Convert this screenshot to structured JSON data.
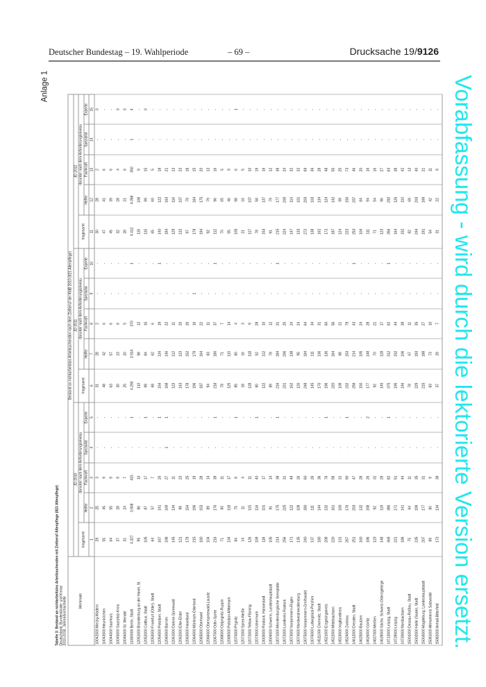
{
  "page_header": {
    "left": "Deutscher Bundestag – 19. Wahlperiode",
    "center": "– 69 –",
    "right_prefix": "Drucksache 19/",
    "right_number": "9126"
  },
  "annex_label": "Anlage 1",
  "watermark": "Vorabfassung - wird durch die lektorierte Version ersetzt.",
  "watermark_color": "#22e6ee",
  "table": {
    "title": "Tabelle 3: Bestand an nichtarbeitslos Arbeitsuchenden mit Zielberuf Altenpflege (821 Altenpflege)",
    "subtitle": "Deutschland, Bundesländer und Kreise",
    "period": "2010-2018, Jahresdurchschnitte",
    "header": {
      "merkmale": "Merkmale",
      "top": "Bestand an nichtarbeitslos Arbeitsuchenden nach dem Zielberuf der KldB 2010 (821 Altenpflege)",
      "years": [
        "JD 2010",
        "JD 2011",
        "JD 2012"
      ],
      "insgesamt": "Insgesamt",
      "darunter": "darunter nach dem Anforderungsniveau",
      "levels": [
        "Helfer",
        "Fachkraft",
        "Spezialist",
        "Experte"
      ],
      "col_numbers": [
        "1",
        "2",
        "3",
        "4",
        "5",
        "6",
        "7",
        "8",
        "9",
        "10",
        "11",
        "12",
        "13",
        "14",
        "15"
      ]
    },
    "rows": [
      {
        "name": "10042000 Merzig-Wadern",
        "v": [
          "29",
          "25",
          "3",
          "-",
          "-",
          "31",
          "28",
          "2",
          "-",
          "-",
          "30",
          "28",
          "2",
          "-",
          "0"
        ]
      },
      {
        "name": "10043000 Neunkirchen",
        "v": [
          "55",
          "45",
          "9",
          "-",
          "-",
          "48",
          "42",
          "6",
          "-",
          "-",
          "47",
          "41",
          "6",
          "-",
          "-"
        ]
      },
      {
        "name": "10044000 Saarlouis",
        "v": [
          "64",
          "55",
          "9",
          "-",
          "-",
          "63",
          "57",
          "6",
          "-",
          "-",
          "45",
          "39",
          "6",
          "-",
          "-"
        ]
      },
      {
        "name": "10045000 Saarpfalz-Kreis",
        "v": [
          "37",
          "28",
          "9",
          "-",
          "-",
          "30",
          "23",
          "6",
          "-",
          "-",
          "32",
          "28",
          "4",
          "-",
          "0"
        ]
      },
      {
        "name": "10046000 St. Wendel",
        "v": [
          "31",
          "24",
          "7",
          "-",
          "-",
          "25",
          "20",
          "5",
          "-",
          "-",
          "28",
          "21",
          "6",
          "-",
          "0"
        ]
      },
      {
        "name": "11000000 Berlin, Stadt",
        "v": [
          "4.327",
          "3.908",
          "415",
          "-",
          "1",
          "4.290",
          "3.914",
          "370",
          "-",
          "1",
          "4.412",
          "4.058",
          "350",
          "1",
          "4"
        ]
      },
      {
        "name": "12051000 Brandenburg an der Havel, St.",
        "v": [
          "95",
          "86",
          "10",
          "-",
          "-",
          "110",
          "98",
          "12",
          "-",
          "-",
          "115",
          "106",
          "9",
          "-",
          "-"
        ]
      },
      {
        "name": "12052000 Cottbus, Stadt",
        "v": [
          "105",
          "87",
          "17",
          "-",
          "1",
          "99",
          "84",
          "15",
          "-",
          "-",
          "115",
          "99",
          "15",
          "-",
          "0"
        ]
      },
      {
        "name": "12053000 Frankfurt (Oder), Stadt",
        "v": [
          "64",
          "57",
          "7",
          "-",
          "-",
          "68",
          "62",
          "6",
          "-",
          "-",
          "65",
          "60",
          "5",
          "-",
          "-"
        ]
      },
      {
        "name": "12054000 Potsdam, Stadt",
        "v": [
          "167",
          "141",
          "25",
          "-",
          "1",
          "154",
          "134",
          "19",
          "-",
          "1",
          "140",
          "122",
          "18",
          "-",
          "-"
        ]
      },
      {
        "name": "12060000 Barnim",
        "v": [
          "198",
          "169",
          "27",
          "1",
          "1",
          "168",
          "146",
          "22",
          "-",
          "-",
          "184",
          "163",
          "21",
          "-",
          "-"
        ]
      },
      {
        "name": "12061000 Dahme-Spreewald",
        "v": [
          "145",
          "134",
          "11",
          "-",
          "-",
          "123",
          "112",
          "11",
          "-",
          "-",
          "129",
          "116",
          "13",
          "-",
          "-"
        ]
      },
      {
        "name": "12062000 Elbe-Elster",
        "v": [
          "121",
          "98",
          "23",
          "-",
          "-",
          "143",
          "123",
          "20",
          "-",
          "-",
          "132",
          "107",
          "23",
          "-",
          "-"
        ]
      },
      {
        "name": "12063000 Havelland",
        "v": [
          "179",
          "154",
          "25",
          "-",
          "-",
          "178",
          "152",
          "26",
          "-",
          "-",
          "97",
          "79",
          "18",
          "-",
          "-"
        ]
      },
      {
        "name": "12064000 Märkisch-Oderland",
        "v": [
          "215",
          "196",
          "19",
          "-",
          "-",
          "196",
          "179",
          "16",
          "1",
          "-",
          "178",
          "164",
          "15",
          "-",
          "-"
        ]
      },
      {
        "name": "12065000 Oberhavel",
        "v": [
          "180",
          "153",
          "28",
          "-",
          "-",
          "187",
          "164",
          "22",
          "-",
          "-",
          "194",
          "175",
          "20",
          "-",
          "-"
        ]
      },
      {
        "name": "12066000 Oberspreewald-Lausitz",
        "v": [
          "104",
          "89",
          "14",
          "-",
          "-",
          "94",
          "83",
          "11",
          "-",
          "-",
          "92",
          "79",
          "13",
          "-",
          "-"
        ]
      },
      {
        "name": "12067000 Oder-Spree",
        "v": [
          "216",
          "176",
          "39",
          "-",
          "1",
          "218",
          "180",
          "37",
          "-",
          "1",
          "112",
          "96",
          "16",
          "-",
          "-"
        ]
      },
      {
        "name": "12068000 Ostprignitz-Ruppin",
        "v": [
          "71",
          "60",
          "11",
          "-",
          "-",
          "78",
          "71",
          "7",
          "-",
          "-",
          "70",
          "65",
          "5",
          "-",
          "-"
        ]
      },
      {
        "name": "12069000 Potsdam-Mittelmark",
        "v": [
          "134",
          "118",
          "17",
          "-",
          "-",
          "125",
          "110",
          "14",
          "-",
          "-",
          "55",
          "46",
          "9",
          "-",
          "-"
        ]
      },
      {
        "name": "12070000 Prignitz",
        "v": [
          "84",
          "75",
          "8",
          "-",
          "1",
          "85",
          "80",
          "4",
          "-",
          "-",
          "105",
          "98",
          "6",
          "-",
          "1"
        ]
      },
      {
        "name": "12071000 Spree-Neiße",
        "v": [
          "14",
          "11",
          "4",
          "-",
          "-",
          "18",
          "16",
          "3",
          "-",
          "-",
          "21",
          "16",
          "5",
          "-",
          "-"
        ]
      },
      {
        "name": "12072000 Teltow-Fläming",
        "v": [
          "126",
          "115",
          "11",
          "-",
          "-",
          "128",
          "118",
          "9",
          "-",
          "-",
          "117",
          "107",
          "10",
          "-",
          "-"
        ]
      },
      {
        "name": "12073000 Uckermark",
        "v": [
          "159",
          "116",
          "40",
          "-",
          "1",
          "80",
          "52",
          "28",
          "-",
          "-",
          "78",
          "58",
          "19",
          "-",
          "-"
        ]
      },
      {
        "name": "13003000 Rostock, Hansestadt",
        "v": [
          "118",
          "101",
          "17",
          "-",
          "-",
          "122",
          "112",
          "10",
          "-",
          "-",
          "153",
          "137",
          "16",
          "-",
          "-"
        ]
      },
      {
        "name": "13004000 Schwerin, Landeshauptstadt",
        "v": [
          "105",
          "91",
          "14",
          "-",
          "-",
          "89",
          "78",
          "12",
          "-",
          "-",
          "91",
          "79",
          "12",
          "-",
          "-"
        ]
      },
      {
        "name": "13071000 Mecklenburgische Seenplatte",
        "v": [
          "214",
          "175",
          "38",
          "-",
          "1",
          "216",
          "184",
          "31",
          "-",
          "1",
          "215",
          "177",
          "38",
          "-",
          "-"
        ]
      },
      {
        "name": "13072000 Landkreis Rostock",
        "v": [
          "256",
          "225",
          "31",
          "-",
          "-",
          "231",
          "206",
          "25",
          "-",
          "-",
          "224",
          "200",
          "24",
          "-",
          "-"
        ]
      },
      {
        "name": "13073000 Vorpommern-Rügen",
        "v": [
          "171",
          "122",
          "49",
          "-",
          "-",
          "162",
          "138",
          "24",
          "-",
          "-",
          "147",
          "114",
          "32",
          "-",
          "-"
        ]
      },
      {
        "name": "13074000 Nordwestmecklenburg",
        "v": [
          "135",
          "109",
          "26",
          "-",
          "-",
          "120",
          "95",
          "24",
          "-",
          "-",
          "133",
          "101",
          "32",
          "-",
          "-"
        ]
      },
      {
        "name": "13075000 Vorpommern-Greifswald",
        "v": [
          "240",
          "180",
          "60",
          "-",
          "-",
          "248",
          "184",
          "64",
          "-",
          "-",
          "272",
          "203",
          "69",
          "-",
          "-"
        ]
      },
      {
        "name": "13076000 Ludwigslust-Parchim",
        "v": [
          "137",
          "111",
          "26",
          "-",
          "-",
          "145",
          "111",
          "34",
          "-",
          "-",
          "138",
          "103",
          "36",
          "-",
          "-"
        ]
      },
      {
        "name": "14511000 Chemnitz, Stadt",
        "v": [
          "180",
          "144",
          "36",
          "-",
          "-",
          "170",
          "136",
          "31",
          "-",
          "-",
          "162",
          "134",
          "28",
          "-",
          "-"
        ]
      },
      {
        "name": "14521000 Erzgebirgskreis",
        "v": [
          "209",
          "132",
          "76",
          "-",
          "1",
          "196",
          "136",
          "60",
          "-",
          "-",
          "172",
          "124",
          "48",
          "-",
          "-"
        ]
      },
      {
        "name": "14522000 Mittelsachsen",
        "v": [
          "220",
          "161",
          "59",
          "-",
          "-",
          "220",
          "164",
          "56",
          "-",
          "-",
          "187",
          "142",
          "55",
          "-",
          "-"
        ]
      },
      {
        "name": "14523000 Vogtlandkreis",
        "v": [
          "131",
          "100",
          "31",
          "-",
          "-",
          "109",
          "88",
          "21",
          "-",
          "-",
          "124",
          "99",
          "25",
          "-",
          "-"
        ]
      },
      {
        "name": "14524000 Zwickau",
        "v": [
          "267",
          "176",
          "90",
          "-",
          "1",
          "232",
          "153",
          "79",
          "-",
          "-",
          "223",
          "150",
          "73",
          "-",
          "-"
        ]
      },
      {
        "name": "14612000 Dresden, Stadt",
        "v": [
          "251",
          "203",
          "47",
          "-",
          "-",
          "259",
          "214",
          "43",
          "-",
          "1",
          "253",
          "207",
          "46",
          "-",
          "-"
        ]
      },
      {
        "name": "14625000 Bautzen",
        "v": [
          "160",
          "132",
          "28",
          "-",
          "-",
          "150",
          "105",
          "24",
          "-",
          "-",
          "104",
          "84",
          "20",
          "-",
          "-"
        ]
      },
      {
        "name": "14626000 Görlitz",
        "v": [
          "186",
          "158",
          "26",
          "-",
          "2",
          "177",
          "148",
          "28",
          "-",
          "-",
          "111",
          "94",
          "16",
          "-",
          "-"
        ]
      },
      {
        "name": "14627000 Meißen",
        "v": [
          "123",
          "92",
          "31",
          "-",
          "-",
          "92",
          "70",
          "21",
          "-",
          "-",
          "71",
          "54",
          "16",
          "-",
          "-"
        ]
      },
      {
        "name": "14628000 Sächs. Schweiz-Osterzgebirge",
        "v": [
          "148",
          "119",
          "29",
          "-",
          "-",
          "145",
          "128",
          "17",
          "-",
          "-",
          "123",
          "96",
          "27",
          "-",
          "-"
        ]
      },
      {
        "name": "14713000 Leipzig, Stadt",
        "v": [
          "469",
          "386",
          "82",
          "-",
          "1",
          "375",
          "312",
          "62",
          "-",
          "1",
          "356",
          "292",
          "63",
          "-",
          "-"
        ]
      },
      {
        "name": "14729000 Leipzig",
        "v": [
          "221",
          "171",
          "51",
          "-",
          "-",
          "195",
          "152",
          "44",
          "-",
          "-",
          "164",
          "126",
          "38",
          "-",
          "-"
        ]
      },
      {
        "name": "14730000 Nordsachsen",
        "v": [
          "186",
          "141",
          "44",
          "-",
          "-",
          "146",
          "106",
          "38",
          "-",
          "-",
          "152",
          "110",
          "42",
          "-",
          "-"
        ]
      },
      {
        "name": "15001000 Dessau-Roßlau, Stadt",
        "v": [
          "75",
          "64",
          "11",
          "-",
          "-",
          "78",
          "67",
          "11",
          "-",
          "-",
          "82",
          "69",
          "13",
          "-",
          "-"
        ]
      },
      {
        "name": "15002000 Halle (Saale), Stadt",
        "v": [
          "235",
          "199",
          "35",
          "-",
          "-",
          "229",
          "193",
          "35",
          "-",
          "-",
          "244",
          "203",
          "40",
          "-",
          "-"
        ]
      },
      {
        "name": "15003000 Magdeburg, Landeshauptstadt",
        "v": [
          "207",
          "177",
          "31",
          "-",
          "-",
          "215",
          "188",
          "27",
          "-",
          "-",
          "191",
          "169",
          "21",
          "-",
          "-"
        ]
      },
      {
        "name": "15081000 Altmarkkreis Salzwedel",
        "v": [
          "89",
          "80",
          "9",
          "-",
          "-",
          "83",
          "73",
          "10",
          "-",
          "-",
          "54",
          "42",
          "11",
          "-",
          "-"
        ]
      },
      {
        "name": "15082000 Anhalt-Bitterfeld",
        "v": [
          "173",
          "134",
          "39",
          "-",
          "-",
          "37",
          "29",
          "7",
          "-",
          "-",
          "31",
          "22",
          "9",
          "-",
          "-"
        ]
      }
    ]
  }
}
